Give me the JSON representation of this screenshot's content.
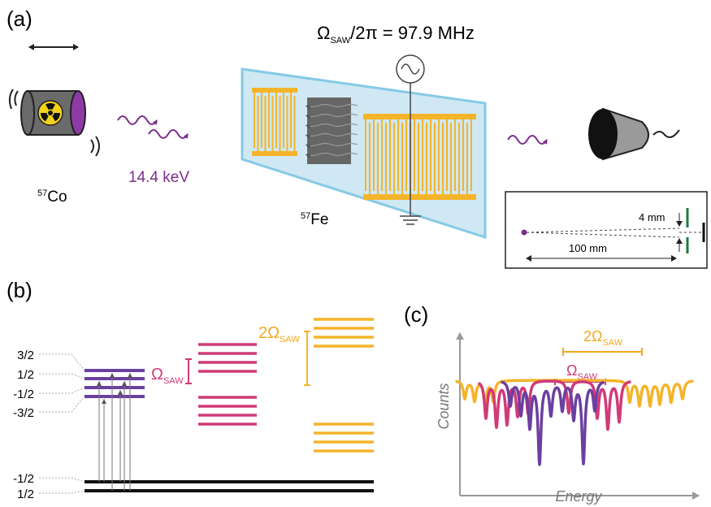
{
  "panel_a": {
    "label": "(a)",
    "frequency": {
      "symbol": "Ω",
      "subscript": "SAW",
      "rest": "/2π = 97.9 MHz"
    },
    "source": {
      "mass": "57",
      "element": "Co"
    },
    "energy": "14.4 keV",
    "absorber": {
      "mass": "57",
      "element": "Fe"
    },
    "inset": {
      "gap": "4 mm",
      "distance": "100 mm"
    }
  },
  "panel_b": {
    "label": "(b)",
    "excited_levels": [
      "3/2",
      "1/2",
      "-1/2",
      "-3/2"
    ],
    "ground_levels": [
      "-1/2",
      "1/2"
    ],
    "sideband_1": {
      "symbol": "Ω",
      "subscript": "SAW"
    },
    "sideband_2": {
      "symbol": "2Ω",
      "subscript": "SAW"
    }
  },
  "panel_c": {
    "label": "(c)",
    "sideband_2": {
      "symbol": "2Ω",
      "subscript": "SAW"
    },
    "sideband_1": {
      "symbol": "Ω",
      "subscript": "SAW"
    },
    "y_label": "Counts",
    "x_label": "Energy"
  }
}
